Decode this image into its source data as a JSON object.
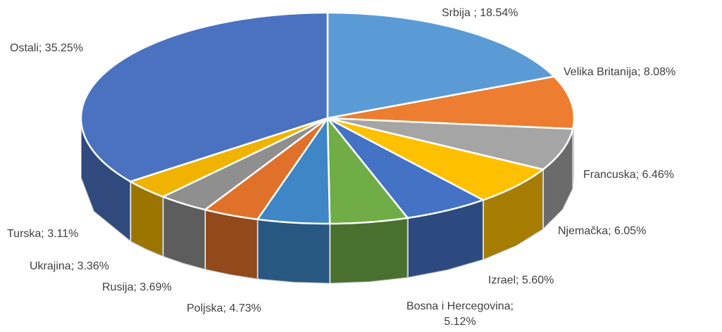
{
  "chart_data": {
    "type": "pie",
    "three_d": true,
    "values": [
      18.54,
      8.08,
      6.46,
      6.05,
      5.6,
      5.12,
      4.73,
      3.69,
      3.36,
      3.11,
      35.25
    ],
    "value_labels": [
      "Srbija ; 18.54%",
      "Velika Britanija; 8.08%",
      "Francuska; 6.46%",
      "Njemačka; 6.05%",
      "Izrael; 5.60%",
      "Bosna i Hercegovina; 5.12%",
      "Poljska; 4.73%",
      "Rusija; 3.69%",
      "Ukrajina; 3.36%",
      "Turska; 3.11%",
      "Ostali; 35.25%"
    ],
    "colors": [
      "#5b9bd5",
      "#ed7d31",
      "#a5a5a5",
      "#ffc000",
      "#4472c4",
      "#70ad47",
      "#3e86c6",
      "#e0712a",
      "#8f8f8f",
      "#f0b400",
      "#4a72c0"
    ]
  }
}
